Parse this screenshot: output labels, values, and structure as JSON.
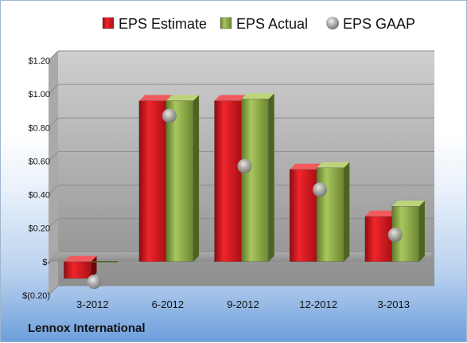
{
  "chart_data": {
    "type": "bar",
    "categories": [
      "3-2012",
      "6-2012",
      "9-2012",
      "12-2012",
      "3-2013"
    ],
    "series": [
      {
        "name": "EPS Estimate",
        "kind": "bar",
        "color": "#d9141b",
        "values": [
          -0.1,
          0.96,
          0.96,
          0.55,
          0.27
        ]
      },
      {
        "name": "EPS Actual",
        "kind": "bar",
        "color": "#8fae4a",
        "values": [
          0.0,
          0.96,
          0.97,
          0.56,
          0.33
        ]
      },
      {
        "name": "EPS GAAP",
        "kind": "marker",
        "color": "#a6a6a6",
        "values": [
          -0.12,
          0.87,
          0.57,
          0.43,
          0.16
        ]
      }
    ],
    "ylim": [
      -0.2,
      1.2
    ],
    "yticks": [
      {
        "value": 1.2,
        "label": "$1.20"
      },
      {
        "value": 1.0,
        "label": "$1.00"
      },
      {
        "value": 0.8,
        "label": "$0.80"
      },
      {
        "value": 0.6,
        "label": "$0.60"
      },
      {
        "value": 0.4,
        "label": "$0.40"
      },
      {
        "value": 0.2,
        "label": "$0.20"
      },
      {
        "value": 0.0,
        "label": "$-"
      },
      {
        "value": -0.2,
        "label": "$(0.20)"
      }
    ],
    "legend_position": "top",
    "grid": true
  },
  "footer": {
    "company": "Lennox International"
  }
}
